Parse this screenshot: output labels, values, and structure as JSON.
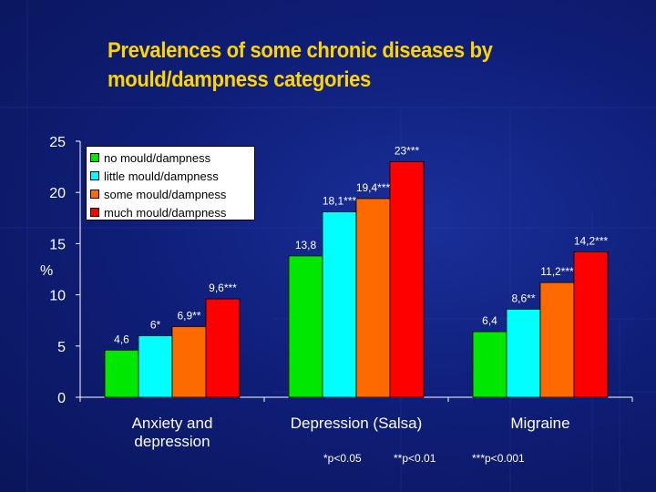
{
  "title": "Prevalences of some chronic diseases by mould/dampness categories",
  "footnotes": [
    "*p<0.05",
    "**p<0.01",
    "***p<0.001"
  ],
  "colors": {
    "background": "#0f1f7a",
    "title": "#ffd400",
    "series": [
      "#00e800",
      "#00ffff",
      "#ff6a00",
      "#ff0000"
    ]
  },
  "chart_data": {
    "type": "bar",
    "title": "Prevalences of some chronic diseases by mould/dampness categories",
    "xlabel": "",
    "ylabel": "%",
    "ylim": [
      0,
      25
    ],
    "yticks": [
      0,
      5,
      10,
      15,
      20,
      25
    ],
    "categories": [
      "Anxiety and depression",
      "Depression (Salsa)",
      "Migraine"
    ],
    "series": [
      {
        "name": "no mould/dampness",
        "values": [
          4.6,
          13.8,
          6.4
        ],
        "labels": [
          "4,6",
          "13,8",
          "6,4"
        ],
        "color": "#00e800"
      },
      {
        "name": "little mould/dampness",
        "values": [
          6,
          18.1,
          8.6
        ],
        "labels": [
          "6*",
          "18,1***",
          "8,6**"
        ],
        "color": "#00ffff"
      },
      {
        "name": "some mould/dampness",
        "values": [
          6.9,
          19.4,
          11.2
        ],
        "labels": [
          "6,9**",
          "19,4***",
          "11,2***"
        ],
        "color": "#ff6a00"
      },
      {
        "name": "much mould/dampness",
        "values": [
          9.6,
          23,
          14.2
        ],
        "labels": [
          "9,6***",
          "23***",
          "14,2***"
        ],
        "color": "#ff0000"
      }
    ],
    "grid": false,
    "legend_position": "top-left"
  }
}
